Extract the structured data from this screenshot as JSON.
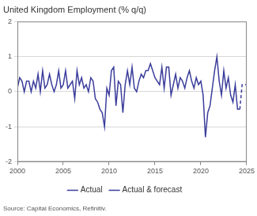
{
  "chart_data": {
    "type": "line",
    "title": "United Kingdom Employment (% q/q)",
    "source": "Source: Capital Economics, Refinitiv.",
    "x": [
      2000,
      2000.25,
      2000.5,
      2000.75,
      2001,
      2001.25,
      2001.5,
      2001.75,
      2002,
      2002.25,
      2002.5,
      2002.75,
      2003,
      2003.25,
      2003.5,
      2003.75,
      2004,
      2004.25,
      2004.5,
      2004.75,
      2005,
      2005.25,
      2005.5,
      2005.75,
      2006,
      2006.25,
      2006.5,
      2006.75,
      2007,
      2007.25,
      2007.5,
      2007.75,
      2008,
      2008.25,
      2008.5,
      2008.75,
      2009,
      2009.25,
      2009.5,
      2009.75,
      2010,
      2010.25,
      2010.5,
      2010.75,
      2011,
      2011.25,
      2011.5,
      2011.75,
      2012,
      2012.25,
      2012.5,
      2012.75,
      2013,
      2013.25,
      2013.5,
      2013.75,
      2014,
      2014.25,
      2014.5,
      2014.75,
      2015,
      2015.25,
      2015.5,
      2015.75,
      2016,
      2016.25,
      2016.5,
      2016.75,
      2017,
      2017.25,
      2017.5,
      2017.75,
      2018,
      2018.25,
      2018.5,
      2018.75,
      2019,
      2019.25,
      2019.5,
      2019.75,
      2020,
      2020.25,
      2020.5,
      2020.75,
      2021,
      2021.25,
      2021.5,
      2021.75,
      2022,
      2022.25,
      2022.5,
      2022.75,
      2023,
      2023.25,
      2023.5,
      2023.75,
      2024,
      2024.25,
      2024.5,
      2024.75,
      2025
    ],
    "series": [
      {
        "name": "Actual",
        "color": "#3b3d9b",
        "line_style": "solid",
        "values": [
          0.1,
          0.4,
          0.3,
          0.0,
          0.3,
          0.3,
          0.0,
          0.3,
          0.1,
          0.5,
          0.0,
          0.6,
          0.1,
          0.2,
          0.5,
          0.2,
          0.0,
          0.2,
          0.6,
          0.1,
          0.2,
          0.6,
          0.1,
          0.2,
          0.3,
          -0.2,
          0.6,
          0.2,
          0.4,
          0.1,
          0.2,
          0.0,
          0.4,
          0.3,
          -0.2,
          -0.3,
          -0.5,
          -0.6,
          -1.0,
          0.1,
          -0.1,
          0.6,
          0.7,
          -0.4,
          0.3,
          0.2,
          -0.6,
          0.2,
          0.6,
          0.2,
          0.7,
          0.1,
          0.0,
          0.3,
          0.5,
          0.4,
          0.6,
          0.6,
          0.8,
          0.6,
          0.4,
          0.3,
          0.2,
          0.7,
          0.1,
          0.7,
          0.7,
          -0.1,
          0.2,
          0.5,
          0.1,
          0.4,
          0.3,
          0.1,
          0.4,
          0.6,
          0.3,
          0.1,
          0.4,
          0.2,
          0.3,
          -0.1,
          -1.3,
          -0.6,
          -0.4,
          0.1,
          0.6,
          1.0,
          0.3,
          -0.1,
          0.6,
          0.1,
          0.4,
          -0.1,
          -0.3,
          0.2,
          -0.5,
          -0.5,
          null,
          null,
          null
        ]
      },
      {
        "name": "Actual & forecast",
        "color": "#3b3d9b",
        "line_style": "dashed",
        "values": [
          null,
          null,
          null,
          null,
          null,
          null,
          null,
          null,
          null,
          null,
          null,
          null,
          null,
          null,
          null,
          null,
          null,
          null,
          null,
          null,
          null,
          null,
          null,
          null,
          null,
          null,
          null,
          null,
          null,
          null,
          null,
          null,
          null,
          null,
          null,
          null,
          null,
          null,
          null,
          null,
          null,
          null,
          null,
          null,
          null,
          null,
          null,
          null,
          null,
          null,
          null,
          null,
          null,
          null,
          null,
          null,
          null,
          null,
          null,
          null,
          null,
          null,
          null,
          null,
          null,
          null,
          null,
          null,
          null,
          null,
          null,
          null,
          null,
          null,
          null,
          null,
          null,
          null,
          null,
          null,
          null,
          null,
          null,
          null,
          null,
          null,
          null,
          null,
          null,
          null,
          null,
          null,
          null,
          null,
          null,
          null,
          null,
          -0.5,
          0.2,
          0.2,
          0.2
        ]
      }
    ],
    "xlim": [
      2000,
      2025
    ],
    "xticks": [
      2000,
      2005,
      2010,
      2015,
      2020,
      2025
    ],
    "ylim": [
      -2,
      2
    ],
    "yticks": [
      -2,
      -1,
      0,
      1,
      2
    ],
    "grid": true,
    "legend": "bottom"
  }
}
